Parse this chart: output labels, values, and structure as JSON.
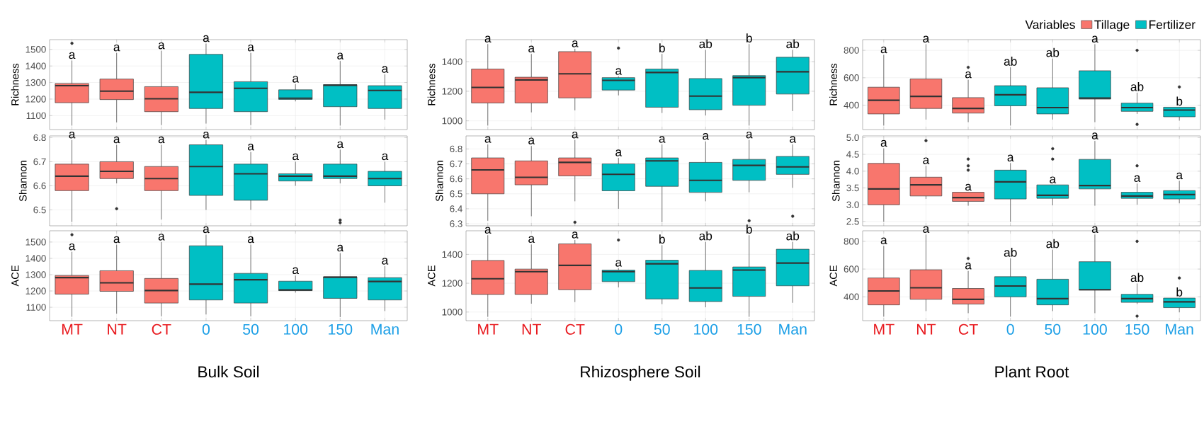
{
  "chart_data": [
    {
      "type": "box",
      "ylabel": "Richness",
      "categories": [
        null,
        null,
        null,
        null,
        null,
        null,
        null,
        null
      ],
      "ylim": [
        1016,
        1559
      ],
      "yticks": [
        1100,
        1200,
        1300,
        1400,
        1500
      ],
      "grid": true,
      "tick_labels": "y",
      "series": [
        {
          "color": "#f8766d",
          "boxes": [
            {
              "low": 1040,
              "q1": 1178,
              "median": 1281,
              "q3": 1294,
              "high": 1433,
              "outliers": [
                1537
              ]
            },
            {
              "low": 1059,
              "q1": 1197,
              "median": 1248,
              "q3": 1321,
              "high": 1479
            },
            {
              "low": 1043,
              "q1": 1124,
              "median": 1202,
              "q3": 1275,
              "high": 1492
            },
            null,
            null,
            null,
            null,
            null
          ]
        },
        {
          "color": "#00bfc4",
          "boxes": [
            null,
            null,
            null,
            {
              "low": 1052,
              "q1": 1143,
              "median": 1241,
              "q3": 1470,
              "high": 1535
            },
            {
              "low": 1043,
              "q1": 1124,
              "median": 1265,
              "q3": 1305,
              "high": 1479
            },
            {
              "low": 1186,
              "q1": 1198,
              "median": 1205,
              "q3": 1256,
              "high": 1290
            },
            {
              "low": 1040,
              "q1": 1154,
              "median": 1284,
              "q3": 1287,
              "high": 1430
            },
            {
              "low": 1076,
              "q1": 1143,
              "median": 1252,
              "q3": 1281,
              "high": 1349
            }
          ]
        }
      ],
      "annotations": [
        "a",
        "a",
        "a",
        "a",
        "a",
        "a",
        "a",
        "a"
      ]
    },
    {
      "type": "box",
      "ylabel": "Richness",
      "categories": [
        null,
        null,
        null,
        null,
        null,
        null,
        null,
        null
      ],
      "ylim": [
        941,
        1549
      ],
      "yticks": [
        1000,
        1200,
        1400
      ],
      "grid": true,
      "tick_labels": "y",
      "series": [
        {
          "color": "#f8766d",
          "boxes": [
            {
              "low": 968,
              "q1": 1121,
              "median": 1226,
              "q3": 1350,
              "high": 1519
            },
            {
              "low": 1057,
              "q1": 1121,
              "median": 1277,
              "q3": 1295,
              "high": 1452
            },
            {
              "low": 1071,
              "q1": 1155,
              "median": 1318,
              "q3": 1468,
              "high": 1487
            },
            null,
            null,
            null,
            null,
            null
          ]
        },
        {
          "color": "#00bfc4",
          "boxes": [
            null,
            null,
            null,
            {
              "low": 1172,
              "q1": 1208,
              "median": 1274,
              "q3": 1292,
              "high": 1300,
              "outliers": [
                1492
              ]
            },
            {
              "low": 1053,
              "q1": 1092,
              "median": 1327,
              "q3": 1350,
              "high": 1452
            },
            {
              "low": 1036,
              "q1": 1075,
              "median": 1167,
              "q3": 1286,
              "high": 1480
            },
            {
              "low": 968,
              "q1": 1105,
              "median": 1292,
              "q3": 1306,
              "high": 1519
            },
            {
              "low": 1066,
              "q1": 1181,
              "median": 1332,
              "q3": 1430,
              "high": 1480
            }
          ]
        }
      ],
      "annotations": [
        "a",
        "a",
        "a",
        "a",
        "b",
        "ab",
        "b",
        "ab"
      ]
    },
    {
      "type": "box",
      "ylabel": "Richness",
      "categories": [
        null,
        null,
        null,
        null,
        null,
        null,
        null,
        null
      ],
      "ylim": [
        222,
        878
      ],
      "yticks": [
        400,
        600,
        800
      ],
      "grid": true,
      "tick_labels": "y",
      "legend": "top right",
      "legend_title": "Variables",
      "series": [
        {
          "name": "Tillage",
          "color": "#f8766d",
          "boxes": [
            {
              "low": 251,
              "q1": 336,
              "median": 436,
              "q3": 531,
              "high": 767
            },
            {
              "low": 295,
              "q1": 376,
              "median": 464,
              "q3": 591,
              "high": 845
            },
            {
              "low": 276,
              "q1": 342,
              "median": 376,
              "q3": 455,
              "high": 585,
              "outliers": [
                676
              ]
            },
            null,
            null,
            null,
            null,
            null
          ]
        },
        {
          "name": "Fertilizer",
          "color": "#00bfc4",
          "boxes": [
            null,
            null,
            null,
            {
              "low": 251,
              "q1": 395,
              "median": 476,
              "q3": 542,
              "high": 676
            },
            {
              "low": 295,
              "q1": 336,
              "median": 382,
              "q3": 527,
              "high": 740
            },
            {
              "low": 276,
              "q1": 444,
              "median": 451,
              "q3": 651,
              "high": 845
            },
            {
              "low": 336,
              "q1": 355,
              "median": 382,
              "q3": 415,
              "high": 491,
              "outliers": [
                800,
                260
              ]
            },
            {
              "low": 287,
              "q1": 315,
              "median": 364,
              "q3": 385,
              "high": 385,
              "outliers": [
                533
              ]
            }
          ]
        }
      ],
      "annotations": [
        "a",
        "a",
        "a",
        "ab",
        "ab",
        "a",
        "ab",
        "b"
      ]
    },
    {
      "type": "box",
      "ylabel": "Shannon",
      "categories": [
        null,
        null,
        null,
        null,
        null,
        null,
        null,
        null
      ],
      "ylim": [
        6.434,
        6.807
      ],
      "yticks": [
        6.5,
        6.6,
        6.7,
        6.8
      ],
      "grid": true,
      "tick_labels": "y",
      "series": [
        {
          "color": "#f8766d",
          "boxes": [
            {
              "low": 6.45,
              "q1": 6.58,
              "median": 6.64,
              "q3": 6.69,
              "high": 6.79
            },
            {
              "low": 6.61,
              "q1": 6.63,
              "median": 6.66,
              "q3": 6.7,
              "high": 6.77,
              "outliers": [
                6.505
              ]
            },
            {
              "low": 6.46,
              "q1": 6.58,
              "median": 6.63,
              "q3": 6.68,
              "high": 6.77
            },
            null,
            null,
            null,
            null,
            null
          ]
        },
        {
          "color": "#00bfc4",
          "boxes": [
            null,
            null,
            null,
            {
              "low": 6.5,
              "q1": 6.56,
              "median": 6.68,
              "q3": 6.77,
              "high": 6.79
            },
            {
              "low": 6.5,
              "q1": 6.54,
              "median": 6.65,
              "q3": 6.69,
              "high": 6.74
            },
            {
              "low": 6.6,
              "q1": 6.62,
              "median": 6.64,
              "q3": 6.65,
              "high": 6.7
            },
            {
              "low": 6.61,
              "q1": 6.63,
              "median": 6.64,
              "q3": 6.69,
              "high": 6.75,
              "outliers": [
                6.458,
                6.447
              ]
            },
            {
              "low": 6.53,
              "q1": 6.6,
              "median": 6.63,
              "q3": 6.66,
              "high": 6.7
            }
          ]
        }
      ],
      "annotations": [
        "a",
        "a",
        "a",
        "a",
        "a",
        "a",
        "a",
        "a"
      ]
    },
    {
      "type": "box",
      "ylabel": "Shannon",
      "categories": [
        null,
        null,
        null,
        null,
        null,
        null,
        null,
        null
      ],
      "ylim": [
        6.286,
        6.887
      ],
      "yticks": [
        6.3,
        6.4,
        6.5,
        6.6,
        6.7,
        6.8
      ],
      "grid": true,
      "tick_labels": "y",
      "series": [
        {
          "color": "#f8766d",
          "boxes": [
            {
              "low": 6.32,
              "q1": 6.5,
              "median": 6.66,
              "q3": 6.74,
              "high": 6.83
            },
            {
              "low": 6.35,
              "q1": 6.56,
              "median": 6.61,
              "q3": 6.72,
              "high": 6.82
            },
            {
              "low": 6.45,
              "q1": 6.62,
              "median": 6.71,
              "q3": 6.74,
              "high": 6.86,
              "outliers": [
                6.31
              ]
            },
            null,
            null,
            null,
            null,
            null
          ]
        },
        {
          "color": "#00bfc4",
          "boxes": [
            null,
            null,
            null,
            {
              "low": 6.4,
              "q1": 6.52,
              "median": 6.63,
              "q3": 6.7,
              "high": 6.74
            },
            {
              "low": 6.31,
              "q1": 6.55,
              "median": 6.72,
              "q3": 6.74,
              "high": 6.83
            },
            {
              "low": 6.45,
              "q1": 6.51,
              "median": 6.59,
              "q3": 6.71,
              "high": 6.85
            },
            {
              "low": 6.51,
              "q1": 6.59,
              "median": 6.69,
              "q3": 6.73,
              "high": 6.86,
              "outliers": [
                6.32
              ]
            },
            {
              "low": 6.54,
              "q1": 6.63,
              "median": 6.68,
              "q3": 6.75,
              "high": 6.83,
              "outliers": [
                6.35
              ]
            }
          ]
        }
      ],
      "annotations": [
        "a",
        "a",
        "a",
        "a",
        "a",
        "a",
        "a",
        "a"
      ]
    },
    {
      "type": "box",
      "ylabel": "Shannon",
      "categories": [
        null,
        null,
        null,
        null,
        null,
        null,
        null,
        null
      ],
      "ylim": [
        2.37,
        5.05
      ],
      "yticks": [
        2.5,
        {
          "value": 3,
          "label": "3.0"
        },
        3.5,
        {
          "value": 4,
          "label": "4.0"
        },
        4.5,
        {
          "value": 5,
          "label": "5.0"
        }
      ],
      "grid": true,
      "tick_labels": "y",
      "series": [
        {
          "color": "#f8766d",
          "boxes": [
            {
              "low": 2.49,
              "q1": 3.0,
              "median": 3.47,
              "q3": 4.23,
              "high": 4.68
            },
            {
              "low": 3.17,
              "q1": 3.26,
              "median": 3.59,
              "q3": 3.82,
              "high": 4.16,
              "outliers": [
                4.91
              ]
            },
            {
              "low": 2.97,
              "q1": 3.1,
              "median": 3.21,
              "q3": 3.37,
              "high": 3.37,
              "outliers": [
                4.36,
                4.16,
                4.03
              ]
            },
            null,
            null,
            null,
            null,
            null
          ]
        },
        {
          "color": "#00bfc4",
          "boxes": [
            null,
            null,
            null,
            {
              "low": 2.49,
              "q1": 3.17,
              "median": 3.68,
              "q3": 4.03,
              "high": 4.24
            },
            {
              "low": 2.98,
              "q1": 3.19,
              "median": 3.28,
              "q3": 3.59,
              "high": 3.59,
              "outliers": [
                4.67,
                4.36
              ]
            },
            {
              "low": 2.97,
              "q1": 3.47,
              "median": 3.57,
              "q3": 4.35,
              "high": 4.9
            },
            {
              "low": 3.0,
              "q1": 3.19,
              "median": 3.26,
              "q3": 3.37,
              "high": 3.63,
              "outliers": [
                4.16
              ]
            },
            {
              "low": 3.04,
              "q1": 3.17,
              "median": 3.3,
              "q3": 3.42,
              "high": 3.71
            }
          ]
        }
      ],
      "annotations": [
        "a",
        "a",
        "a",
        "a",
        "a",
        "a",
        "a",
        "a"
      ]
    },
    {
      "type": "box",
      "ylabel": "ACE",
      "xlabel": "Bulk Soil",
      "categories": [
        "MT",
        "NT",
        "CT",
        "0",
        "50",
        "100",
        "150",
        "Man"
      ],
      "ylim": [
        1018,
        1569
      ],
      "yticks": [
        1100,
        1200,
        1300,
        1400,
        1500
      ],
      "grid": true,
      "series": [
        {
          "color": "#f8766d",
          "boxes": [
            {
              "low": 1042,
              "q1": 1181,
              "median": 1282,
              "q3": 1295,
              "high": 1440,
              "outliers": [
                1545
              ]
            },
            {
              "low": 1061,
              "q1": 1198,
              "median": 1250,
              "q3": 1324,
              "high": 1484
            },
            {
              "low": 1045,
              "q1": 1126,
              "median": 1203,
              "q3": 1277,
              "high": 1500
            },
            null,
            null,
            null,
            null,
            null
          ]
        },
        {
          "color": "#00bfc4",
          "boxes": [
            null,
            null,
            null,
            {
              "low": 1056,
              "q1": 1145,
              "median": 1242,
              "q3": 1477,
              "high": 1545
            },
            {
              "low": 1045,
              "q1": 1126,
              "median": 1269,
              "q3": 1308,
              "high": 1484
            },
            {
              "low": 1190,
              "q1": 1202,
              "median": 1206,
              "q3": 1260,
              "high": 1294
            },
            {
              "low": 1040,
              "q1": 1155,
              "median": 1284,
              "q3": 1287,
              "high": 1432
            },
            {
              "low": 1077,
              "q1": 1145,
              "median": 1258,
              "q3": 1282,
              "high": 1352
            }
          ]
        }
      ],
      "annotations": [
        "a",
        "a",
        "a",
        "a",
        "a",
        "a",
        "a",
        "a"
      ]
    },
    {
      "type": "box",
      "ylabel": "ACE",
      "xlabel": "Rhizosphere Soil",
      "categories": [
        "MT",
        "NT",
        "CT",
        "0",
        "50",
        "100",
        "150",
        "Man"
      ],
      "ylim": [
        940,
        1564
      ],
      "yticks": [
        1000,
        1200,
        1400
      ],
      "grid": true,
      "series": [
        {
          "color": "#f8766d",
          "boxes": [
            {
              "low": 967,
              "q1": 1122,
              "median": 1231,
              "q3": 1358,
              "high": 1533
            },
            {
              "low": 1058,
              "q1": 1122,
              "median": 1280,
              "q3": 1298,
              "high": 1469
            },
            {
              "low": 1069,
              "q1": 1155,
              "median": 1324,
              "q3": 1473,
              "high": 1500
            },
            null,
            null,
            null,
            null,
            null
          ]
        },
        {
          "color": "#00bfc4",
          "boxes": [
            null,
            null,
            null,
            {
              "low": 1171,
              "q1": 1211,
              "median": 1280,
              "q3": 1291,
              "high": 1304,
              "outliers": [
                1500
              ]
            },
            {
              "low": 1055,
              "q1": 1091,
              "median": 1335,
              "q3": 1360,
              "high": 1464
            },
            {
              "low": 1033,
              "q1": 1073,
              "median": 1167,
              "q3": 1289,
              "high": 1487
            },
            {
              "low": 967,
              "q1": 1109,
              "median": 1291,
              "q3": 1313,
              "high": 1533
            },
            {
              "low": 1064,
              "q1": 1182,
              "median": 1340,
              "q3": 1436,
              "high": 1487
            }
          ]
        }
      ],
      "annotations": [
        "a",
        "a",
        "a",
        "a",
        "b",
        "ab",
        "b",
        "ab"
      ]
    },
    {
      "type": "box",
      "ylabel": "ACE",
      "xlabel": "Plant Root",
      "categories": [
        "MT",
        "NT",
        "CT",
        "0",
        "50",
        "100",
        "150",
        "Man"
      ],
      "ylim": [
        228,
        876
      ],
      "yticks": [
        400,
        600,
        800
      ],
      "grid": true,
      "series": [
        {
          "color": "#f8766d",
          "boxes": [
            {
              "low": 257,
              "q1": 342,
              "median": 442,
              "q3": 536,
              "high": 767
            },
            {
              "low": 297,
              "q1": 382,
              "median": 465,
              "q3": 595,
              "high": 849
            },
            {
              "low": 282,
              "q1": 348,
              "median": 382,
              "q3": 460,
              "high": 586,
              "outliers": [
                677
              ]
            },
            null,
            null,
            null,
            null,
            null
          ]
        },
        {
          "color": "#00bfc4",
          "boxes": [
            null,
            null,
            null,
            {
              "low": 257,
              "q1": 400,
              "median": 478,
              "q3": 545,
              "high": 677
            },
            {
              "low": 297,
              "q1": 342,
              "median": 387,
              "q3": 527,
              "high": 740
            },
            {
              "low": 282,
              "q1": 449,
              "median": 451,
              "q3": 653,
              "high": 849
            },
            {
              "low": 348,
              "q1": 360,
              "median": 387,
              "q3": 418,
              "high": 496,
              "outliers": [
                800,
                261
              ]
            },
            {
              "low": 288,
              "q1": 322,
              "median": 364,
              "q3": 391,
              "high": 391,
              "outliers": [
                536
              ]
            }
          ]
        }
      ],
      "annotations": [
        "a",
        "a",
        "a",
        "ab",
        "ab",
        "a",
        "ab",
        "b"
      ]
    }
  ]
}
